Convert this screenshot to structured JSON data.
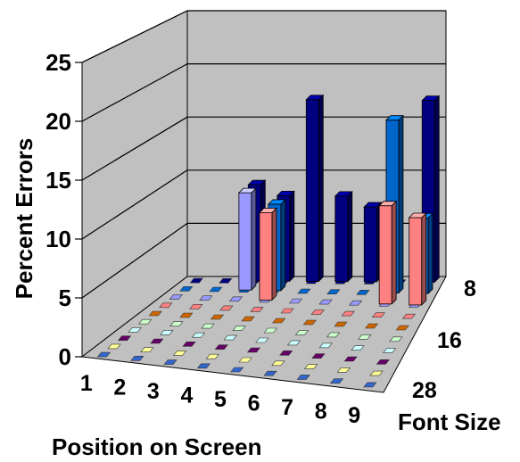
{
  "chart_data": {
    "type": "bar",
    "ylabel": "Percent Errors",
    "xlabel": "Position on Screen",
    "zlabel": "Font Size",
    "ylim": [
      0,
      25
    ],
    "yticks": [
      "0",
      "5",
      "10",
      "15",
      "20",
      "25"
    ],
    "x_categories": [
      "1",
      "2",
      "3",
      "4",
      "5",
      "6",
      "7",
      "8",
      "9"
    ],
    "z_tick_labels": [
      "8",
      "16",
      "28"
    ],
    "grid": true,
    "series_colors": [
      "#000080",
      "#0066cc",
      "#9999ff",
      "#ff8080",
      "#cc6600",
      "#ccffcc",
      "#ccffff",
      "#660066",
      "#ffff99",
      "#3366cc"
    ],
    "bars": [
      {
        "x": "3",
        "row": 0,
        "value": 9,
        "color": "#000080"
      },
      {
        "x": "4",
        "row": 0,
        "value": 8,
        "color": "#000080"
      },
      {
        "x": "5",
        "row": 0,
        "value": 17,
        "color": "#000080"
      },
      {
        "x": "6",
        "row": 0,
        "value": 8,
        "color": "#000080"
      },
      {
        "x": "7",
        "row": 0,
        "value": 7,
        "color": "#000080"
      },
      {
        "x": "9",
        "row": 0,
        "value": 17,
        "color": "#000080"
      },
      {
        "x": "3",
        "row": 1,
        "value": 9,
        "color": "#9999ff"
      },
      {
        "x": "4",
        "row": 1,
        "value": 8,
        "color": "#0066cc"
      },
      {
        "x": "8",
        "row": 1,
        "value": 16,
        "color": "#0066cc"
      },
      {
        "x": "9",
        "row": 1,
        "value": 7,
        "color": "#0066cc"
      },
      {
        "x": "4",
        "row": 2,
        "value": 8,
        "color": "#ff8080"
      },
      {
        "x": "8",
        "row": 2,
        "value": 9,
        "color": "#ff8080"
      },
      {
        "x": "9",
        "row": 2,
        "value": 8,
        "color": "#ff8080"
      }
    ]
  }
}
